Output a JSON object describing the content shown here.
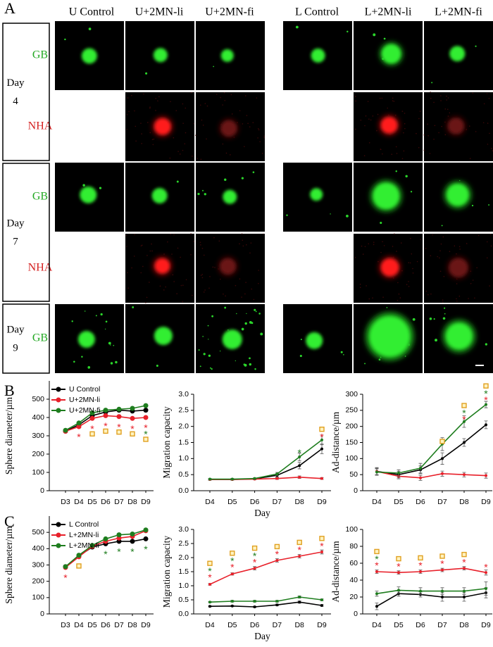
{
  "panel_a": {
    "label": "A",
    "columns": [
      "U Control",
      "U+2MN-li",
      "U+2MN-fi",
      "L Control",
      "L+2MN-li",
      "L+2MN-fi"
    ],
    "row_labels": [
      "GB",
      "NHA",
      "GB",
      "NHA",
      "GB"
    ],
    "days": [
      {
        "word": "Day",
        "number": 4
      },
      {
        "word": "Day",
        "number": 7
      },
      {
        "word": "Day",
        "number": 9
      }
    ]
  },
  "panel_b_label": "B",
  "panel_c_label": "C",
  "chart_data": [
    {
      "type": "line",
      "ylabel": "Sphere diameter/µm",
      "categories": [
        "D3",
        "D4",
        "D5",
        "D6",
        "D7",
        "D8",
        "D9"
      ],
      "ylim": [
        0,
        600
      ],
      "yticks": [
        0,
        100,
        200,
        300,
        400,
        500
      ],
      "series": [
        {
          "name": "U Control",
          "color": "#000000",
          "values": [
            325,
            360,
            410,
            430,
            440,
            435,
            440
          ]
        },
        {
          "name": "U+2MN-li",
          "color": "#e8202a",
          "values": [
            325,
            350,
            395,
            410,
            405,
            395,
            400
          ]
        },
        {
          "name": "U+2MN-fi",
          "color": "#1e7d1e",
          "values": [
            330,
            370,
            425,
            440,
            445,
            450,
            465
          ]
        }
      ],
      "stars": [
        {
          "text": "*",
          "color": "#e8202a",
          "at": [
            "D4",
            "D5",
            "D6",
            "D7",
            "D8",
            "D9"
          ]
        },
        {
          "text": "*",
          "color": "#1e7d1e",
          "at": [
            "D9"
          ]
        }
      ],
      "squares": {
        "color": "#e0a020",
        "at": [
          "D5",
          "D6",
          "D7",
          "D8",
          "D9"
        ]
      }
    },
    {
      "type": "line",
      "ylabel": "Migration capacity",
      "xlabel": "Day",
      "categories": [
        "D4",
        "D5",
        "D6",
        "D7",
        "D8",
        "D9"
      ],
      "ylim": [
        0,
        3
      ],
      "yticks": [
        {
          "value": 0,
          "label": "0.0"
        },
        0.5,
        {
          "value": 1,
          "label": "1.0"
        },
        1.5,
        {
          "value": 2,
          "label": "2.0"
        },
        2.5,
        {
          "value": 3,
          "label": "3.0"
        }
      ],
      "series": [
        {
          "color": "#000000",
          "values": [
            0.35,
            0.35,
            0.37,
            0.48,
            0.78,
            1.3
          ],
          "errors": [
            0.02,
            0.02,
            0.02,
            0.05,
            0.1,
            0.15
          ]
        },
        {
          "color": "#e8202a",
          "values": [
            0.35,
            0.35,
            0.36,
            0.38,
            0.42,
            0.38
          ],
          "errors": [
            0.02,
            0.02,
            0.02,
            0.03,
            0.04,
            0.03
          ]
        },
        {
          "color": "#1e7d1e",
          "values": [
            0.36,
            0.36,
            0.38,
            0.52,
            1.05,
            1.58
          ],
          "errors": [
            0.02,
            0.02,
            0.02,
            0.05,
            0.12,
            0.15
          ]
        }
      ],
      "stars": [
        {
          "text": "*",
          "color": "#e8202a",
          "at": [
            "D9"
          ]
        },
        {
          "text": "*",
          "color": "#1e7d1e",
          "at": [
            "D8"
          ]
        }
      ],
      "squares": {
        "color": "#e0a020",
        "at": [
          "D9"
        ]
      }
    },
    {
      "type": "line",
      "ylabel": "Ad-distance/µm",
      "categories": [
        "D4",
        "D5",
        "D6",
        "D7",
        "D8",
        "D9"
      ],
      "ylim": [
        0,
        300
      ],
      "yticks": [
        0,
        50,
        100,
        150,
        200,
        250,
        300
      ],
      "series": [
        {
          "color": "#000000",
          "values": [
            60,
            50,
            65,
            100,
            150,
            205
          ],
          "errors": [
            12,
            10,
            12,
            18,
            12,
            12
          ]
        },
        {
          "color": "#e8202a",
          "values": [
            60,
            45,
            40,
            53,
            50,
            47
          ],
          "errors": [
            10,
            8,
            8,
            8,
            7,
            8
          ]
        },
        {
          "color": "#1e7d1e",
          "values": [
            58,
            55,
            70,
            145,
            215,
            268
          ],
          "errors": [
            10,
            10,
            15,
            20,
            18,
            10
          ]
        }
      ],
      "stars": [
        {
          "text": "*",
          "color": "#e8202a",
          "at": [
            "D8",
            "D9"
          ]
        },
        {
          "text": "*",
          "color": "#1e7d1e",
          "at": [
            "D8",
            "D9"
          ]
        }
      ],
      "squares": {
        "color": "#e0a020",
        "at": [
          "D7",
          "D8",
          "D9"
        ]
      }
    },
    {
      "type": "line",
      "ylabel": "Sphere diameter/µm",
      "categories": [
        "D3",
        "D4",
        "D5",
        "D6",
        "D7",
        "D8",
        "D9"
      ],
      "ylim": [
        0,
        600
      ],
      "yticks": [
        0,
        100,
        200,
        300,
        400,
        500
      ],
      "series": [
        {
          "name": "L Control",
          "color": "#000000",
          "values": [
            290,
            355,
            410,
            430,
            445,
            445,
            460
          ]
        },
        {
          "name": "L+2MN-li",
          "color": "#e8202a",
          "values": [
            285,
            350,
            415,
            445,
            465,
            475,
            510
          ]
        },
        {
          "name": "L+2MN-fi",
          "color": "#1e7d1e",
          "values": [
            290,
            360,
            420,
            460,
            485,
            490,
            515
          ]
        }
      ],
      "stars": [
        {
          "text": "*",
          "color": "#e8202a",
          "at": [
            "D3"
          ]
        },
        {
          "text": "*",
          "color": "#1e7d1e",
          "at": [
            "D6",
            "D7",
            "D8",
            "D9"
          ]
        }
      ],
      "squares": {
        "color": "#e0a020",
        "at": [
          "D4"
        ]
      }
    },
    {
      "type": "line",
      "ylabel": "Migration capacity",
      "xlabel": "Day",
      "categories": [
        "D4",
        "D5",
        "D6",
        "D7",
        "D8",
        "D9"
      ],
      "ylim": [
        0,
        3
      ],
      "yticks": [
        {
          "value": 0,
          "label": "0.0"
        },
        0.5,
        {
          "value": 1,
          "label": "1.0"
        },
        1.5,
        {
          "value": 2,
          "label": "2.0"
        },
        2.5,
        {
          "value": 3,
          "label": "3.0"
        }
      ],
      "series": [
        {
          "color": "#000000",
          "values": [
            0.27,
            0.28,
            0.25,
            0.32,
            0.42,
            0.3
          ],
          "errors": [
            0.02,
            0.02,
            0.02,
            0.03,
            0.04,
            0.03
          ]
        },
        {
          "color": "#e8202a",
          "values": [
            1.05,
            1.42,
            1.62,
            1.9,
            2.05,
            2.2
          ],
          "errors": [
            0.03,
            0.04,
            0.06,
            0.06,
            0.06,
            0.07
          ]
        },
        {
          "color": "#1e7d1e",
          "values": [
            0.42,
            0.45,
            0.45,
            0.45,
            0.6,
            0.5
          ],
          "errors": [
            0.02,
            0.03,
            0.03,
            0.03,
            0.04,
            0.03
          ]
        }
      ],
      "stars": [
        {
          "text": "*",
          "color": "#e8202a",
          "at": [
            "D4",
            "D5",
            "D6",
            "D7",
            "D8",
            "D9"
          ]
        },
        {
          "text": "*",
          "color": "#1e7d1e",
          "at": [
            "D4",
            "D5",
            "D6"
          ]
        }
      ],
      "squares": {
        "color": "#e0a020",
        "at": [
          "D4",
          "D5",
          "D6",
          "D7",
          "D8",
          "D9"
        ]
      }
    },
    {
      "type": "line",
      "ylabel": "Ad-distance/µm",
      "categories": [
        "D4",
        "D5",
        "D6",
        "D7",
        "D8",
        "D9"
      ],
      "ylim": [
        0,
        100
      ],
      "yticks": [
        0,
        20,
        40,
        60,
        80,
        100
      ],
      "series": [
        {
          "color": "#000000",
          "values": [
            9,
            24,
            23,
            20,
            20,
            25
          ],
          "errors": [
            4,
            3,
            3,
            5,
            5,
            6
          ]
        },
        {
          "color": "#e8202a",
          "values": [
            50,
            49,
            50,
            52,
            54,
            49
          ],
          "errors": [
            2,
            2,
            2,
            2,
            2,
            3
          ]
        },
        {
          "color": "#1e7d1e",
          "values": [
            24,
            28,
            27,
            27,
            27,
            30
          ],
          "errors": [
            3,
            4,
            4,
            4,
            4,
            8
          ]
        }
      ],
      "stars": [
        {
          "text": "*",
          "color": "#e8202a",
          "at": [
            "D4",
            "D5",
            "D6",
            "D7",
            "D8",
            "D9"
          ]
        },
        {
          "text": "*",
          "color": "#1e7d1e",
          "at": [
            "D4"
          ]
        }
      ],
      "squares": {
        "color": "#e0a020",
        "at": [
          "D4",
          "D5",
          "D6",
          "D7",
          "D8"
        ]
      }
    }
  ]
}
